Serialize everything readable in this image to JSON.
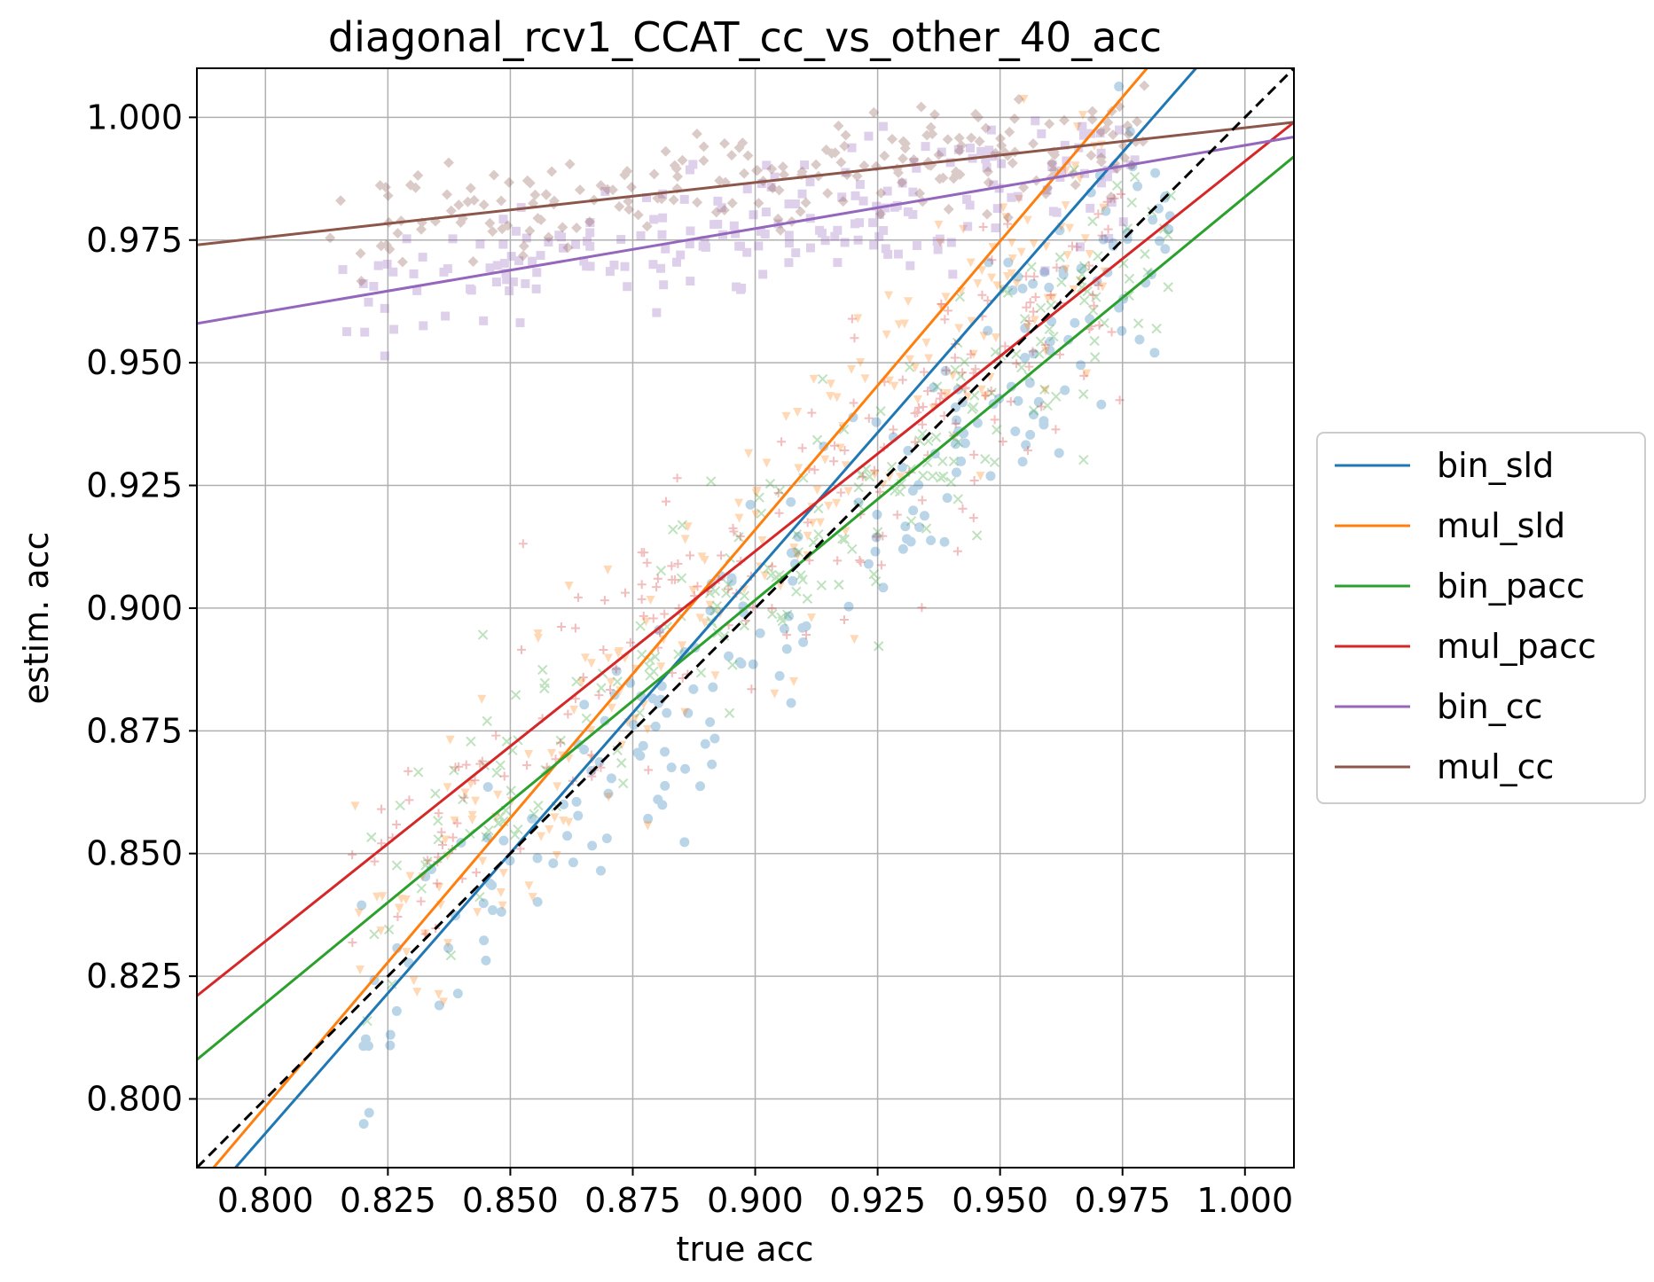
{
  "chart_data": {
    "type": "scatter",
    "title": "diagonal_rcv1_CCAT_cc_vs_other_40_acc",
    "xlabel": "true acc",
    "ylabel": "estim. acc",
    "xlim": [
      0.786,
      1.01
    ],
    "ylim": [
      0.786,
      1.01
    ],
    "x_ticks": [
      0.8,
      0.825,
      0.85,
      0.875,
      0.9,
      0.925,
      0.95,
      0.975,
      1.0
    ],
    "y_ticks": [
      0.8,
      0.825,
      0.85,
      0.875,
      0.9,
      0.925,
      0.95,
      0.975,
      1.0
    ],
    "x_tick_labels": [
      "0.800",
      "0.825",
      "0.850",
      "0.875",
      "0.900",
      "0.925",
      "0.950",
      "0.975",
      "1.000"
    ],
    "y_tick_labels": [
      "0.800",
      "0.825",
      "0.850",
      "0.875",
      "0.900",
      "0.925",
      "0.950",
      "0.975",
      "1.000"
    ],
    "grid": true,
    "legend_position": "right-outside",
    "diagonal_reference": {
      "style": "dashed",
      "color": "#000000",
      "slope": 1,
      "intercept": 0
    },
    "series": [
      {
        "name": "bin_sld",
        "color": "#1f77b4",
        "marker": "circle",
        "fit_line": [
          [
            0.786,
            0.777
          ],
          [
            0.99,
            1.01
          ]
        ],
        "point_cloud": {
          "x_range": [
            0.818,
            0.985
          ],
          "center_slope": 1.02,
          "center_intercept": -0.022,
          "spread": 0.012
        }
      },
      {
        "name": "mul_sld",
        "color": "#ff7f0e",
        "marker": "triangle-down",
        "fit_line": [
          [
            0.786,
            0.782
          ],
          [
            0.98,
            1.01
          ]
        ],
        "point_cloud": {
          "x_range": [
            0.818,
            0.975
          ],
          "center_slope": 1.05,
          "center_intercept": -0.035,
          "spread": 0.013
        }
      },
      {
        "name": "bin_pacc",
        "color": "#2ca02c",
        "marker": "x",
        "fit_line": [
          [
            0.786,
            0.808
          ],
          [
            1.01,
            0.992
          ]
        ],
        "point_cloud": {
          "x_range": [
            0.82,
            0.985
          ],
          "center_slope": 0.85,
          "center_intercept": 0.14,
          "spread": 0.012
        }
      },
      {
        "name": "mul_pacc",
        "color": "#d62728",
        "marker": "plus",
        "fit_line": [
          [
            0.786,
            0.821
          ],
          [
            1.01,
            0.999
          ]
        ],
        "point_cloud": {
          "x_range": [
            0.815,
            0.975
          ],
          "center_slope": 0.8,
          "center_intercept": 0.19,
          "spread": 0.013
        }
      },
      {
        "name": "bin_cc",
        "color": "#9467bd",
        "marker": "square",
        "fit_line": [
          [
            0.786,
            0.958
          ],
          [
            1.01,
            0.996
          ]
        ],
        "point_cloud": {
          "x_range": [
            0.815,
            0.978
          ],
          "center_slope": 0.17,
          "center_intercept": 0.824,
          "spread": 0.007
        }
      },
      {
        "name": "mul_cc",
        "color": "#8c564b",
        "marker": "diamond",
        "fit_line": [
          [
            0.786,
            0.974
          ],
          [
            1.01,
            0.999
          ]
        ],
        "point_cloud": {
          "x_range": [
            0.812,
            0.98
          ],
          "center_slope": 0.11,
          "center_intercept": 0.888,
          "spread": 0.005
        }
      }
    ]
  }
}
